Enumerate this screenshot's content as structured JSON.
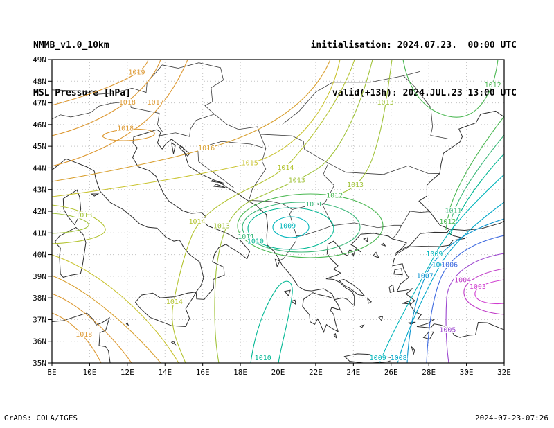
{
  "header": {
    "model": "NMMB_v1.0_10km",
    "field": "MSL Pressure [hPa]",
    "initialisation": "initialisation: 2024.07.23.  00:00 UTC",
    "valid": "valid(+13h): 2024.JUL.23 13:00 UTC"
  },
  "footer": {
    "left": "GrADS: COLA/IGES",
    "right": "2024-07-23-07:26"
  },
  "chart_data": {
    "type": "contour-map",
    "title": "MSL Pressure [hPa]",
    "units": "hPa",
    "contour_interval": 1,
    "grid": "dotted",
    "region": {
      "lon_min": 8,
      "lon_max": 32,
      "lat_min": 35,
      "lat_max": 49
    },
    "lon_ticks": [
      {
        "lon": 8,
        "label": "8E"
      },
      {
        "lon": 10,
        "label": "10E"
      },
      {
        "lon": 12,
        "label": "12E"
      },
      {
        "lon": 14,
        "label": "14E"
      },
      {
        "lon": 16,
        "label": "16E"
      },
      {
        "lon": 18,
        "label": "18E"
      },
      {
        "lon": 20,
        "label": "20E"
      },
      {
        "lon": 22,
        "label": "22E"
      },
      {
        "lon": 24,
        "label": "24E"
      },
      {
        "lon": 26,
        "label": "26E"
      },
      {
        "lon": 28,
        "label": "28E"
      },
      {
        "lon": 30,
        "label": "30E"
      },
      {
        "lon": 32,
        "label": "32E"
      }
    ],
    "lat_ticks": [
      {
        "lat": 35,
        "label": "35N"
      },
      {
        "lat": 36,
        "label": "36N"
      },
      {
        "lat": 37,
        "label": "37N"
      },
      {
        "lat": 38,
        "label": "38N"
      },
      {
        "lat": 39,
        "label": "39N"
      },
      {
        "lat": 40,
        "label": "40N"
      },
      {
        "lat": 41,
        "label": "41N"
      },
      {
        "lat": 42,
        "label": "42N"
      },
      {
        "lat": 43,
        "label": "43N"
      },
      {
        "lat": 44,
        "label": "44N"
      },
      {
        "lat": 45,
        "label": "45N"
      },
      {
        "lat": 46,
        "label": "46N"
      },
      {
        "lat": 47,
        "label": "47N"
      },
      {
        "lat": 48,
        "label": "48N"
      },
      {
        "lat": 49,
        "label": "49N"
      }
    ],
    "level_colors": {
      "1003": "#cf3ccf",
      "1004": "#c13fc8",
      "1005": "#9c46cf",
      "1006": "#3f6be0",
      "1007": "#0a93cf",
      "1008": "#00a6c8",
      "1009": "#00b5bb",
      "1010": "#00b793",
      "1011": "#3cb87a",
      "1012": "#4bb852",
      "1013": "#a0c238",
      "1014": "#b3c32f",
      "1015": "#c9c32f",
      "1016": "#d9a030",
      "1017": "#dd9933",
      "1018": "#dd9933",
      "1019": "#dd9933"
    },
    "labels": [
      {
        "text": "1019",
        "level": 1019,
        "lon": 12.5,
        "lat": 48.4
      },
      {
        "text": "1018",
        "level": 1018,
        "lon": 12.0,
        "lat": 47.0
      },
      {
        "text": "1017",
        "level": 1017,
        "lon": 13.5,
        "lat": 47.0
      },
      {
        "text": "1018",
        "level": 1018,
        "lon": 11.9,
        "lat": 45.8
      },
      {
        "text": "1016",
        "level": 1016,
        "lon": 16.2,
        "lat": 44.9
      },
      {
        "text": "1015",
        "level": 1015,
        "lon": 18.5,
        "lat": 44.2
      },
      {
        "text": "1014",
        "level": 1014,
        "lon": 20.4,
        "lat": 44.0
      },
      {
        "text": "1013",
        "level": 1013,
        "lon": 21.0,
        "lat": 43.4
      },
      {
        "text": "1013",
        "level": 1013,
        "lon": 24.1,
        "lat": 43.2
      },
      {
        "text": "1013",
        "level": 1013,
        "lon": 25.7,
        "lat": 47.0
      },
      {
        "text": "1012",
        "level": 1012,
        "lon": 23.0,
        "lat": 42.7
      },
      {
        "text": "1011",
        "level": 1011,
        "lon": 21.9,
        "lat": 42.3
      },
      {
        "text": "1009",
        "level": 1009,
        "lon": 20.5,
        "lat": 41.3
      },
      {
        "text": "1013",
        "level": 1013,
        "lon": 9.7,
        "lat": 41.8
      },
      {
        "text": "1014",
        "level": 1014,
        "lon": 15.7,
        "lat": 41.5
      },
      {
        "text": "1013",
        "level": 1013,
        "lon": 17.0,
        "lat": 41.3
      },
      {
        "text": "1011",
        "level": 1011,
        "lon": 18.3,
        "lat": 40.8
      },
      {
        "text": "1010",
        "level": 1010,
        "lon": 18.8,
        "lat": 40.6
      },
      {
        "text": "1012",
        "level": 1012,
        "lon": 31.4,
        "lat": 47.8
      },
      {
        "text": "1012",
        "level": 1012,
        "lon": 29.0,
        "lat": 41.5
      },
      {
        "text": "1011",
        "level": 1011,
        "lon": 29.3,
        "lat": 42.0
      },
      {
        "text": "1009",
        "level": 1009,
        "lon": 28.3,
        "lat": 40.0
      },
      {
        "text": "1008",
        "level": 1008,
        "lon": 28.6,
        "lat": 39.5
      },
      {
        "text": "1007",
        "level": 1007,
        "lon": 27.8,
        "lat": 39.0
      },
      {
        "text": "1006",
        "level": 1006,
        "lon": 29.1,
        "lat": 39.5
      },
      {
        "text": "1004",
        "level": 1004,
        "lon": 29.8,
        "lat": 38.8
      },
      {
        "text": "1003",
        "level": 1003,
        "lon": 30.6,
        "lat": 38.5
      },
      {
        "text": "1005",
        "level": 1005,
        "lon": 29.0,
        "lat": 36.5
      },
      {
        "text": "1014",
        "level": 1014,
        "lon": 14.5,
        "lat": 37.8
      },
      {
        "text": "1018",
        "level": 1018,
        "lon": 9.7,
        "lat": 36.3
      },
      {
        "text": "1010",
        "level": 1010,
        "lon": 19.2,
        "lat": 35.2
      },
      {
        "text": "1009",
        "level": 1009,
        "lon": 25.3,
        "lat": 35.2
      },
      {
        "text": "1008",
        "level": 1008,
        "lon": 26.4,
        "lat": 35.2
      }
    ]
  }
}
